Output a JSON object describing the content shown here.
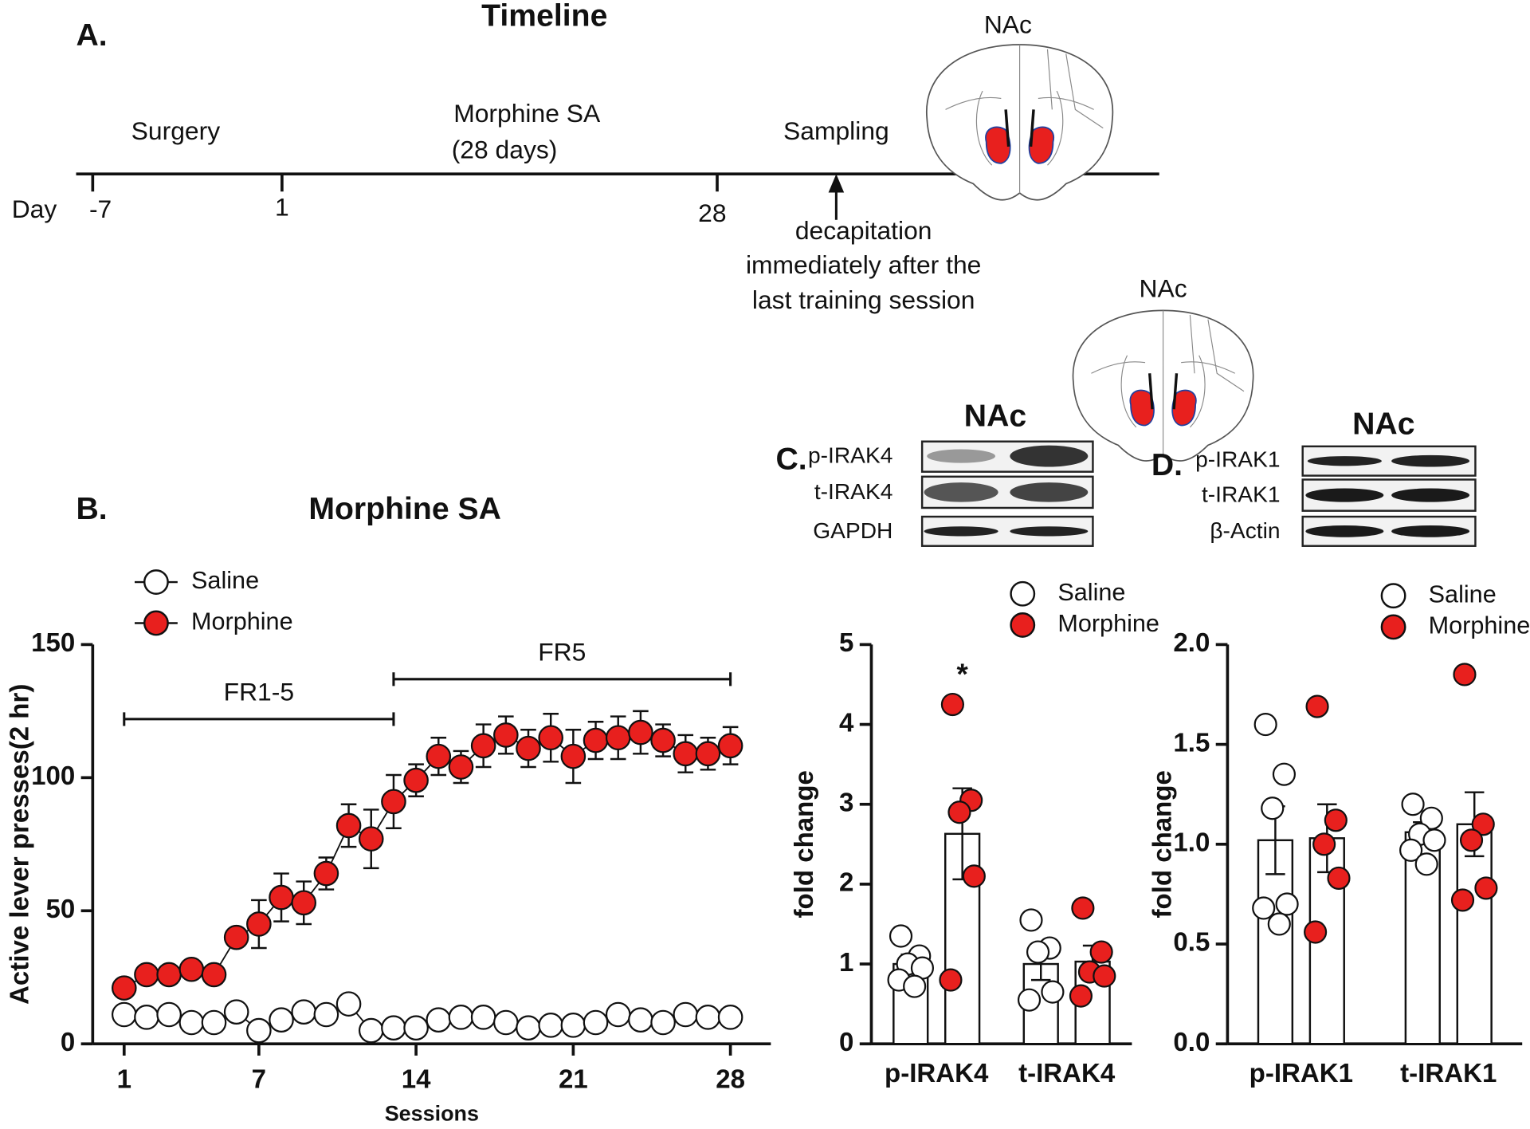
{
  "timeline": {
    "panel_label": "A.",
    "title": "Timeline",
    "day_label": "Day",
    "day_ticks": [
      "-7",
      "1",
      "28"
    ],
    "events": [
      "Surgery",
      "Morphine SA",
      "(28 days)",
      "Sampling"
    ],
    "note": [
      "decapitation",
      "immediately after the",
      "last training session"
    ],
    "region_labels": [
      "NAc",
      "NAc"
    ]
  },
  "blots": [
    {
      "panel_label": "C.",
      "title": "NAc",
      "rows": [
        "p-IRAK4",
        "t-IRAK4",
        "GAPDH"
      ]
    },
    {
      "panel_label": "D.",
      "title": "NAc",
      "rows": [
        "p-IRAK1",
        "t-IRAK1",
        "β-Actin"
      ]
    }
  ],
  "chart_data": [
    {
      "type": "line",
      "panel_label": "B.",
      "title": "Morphine SA",
      "x_label": "Sessions",
      "y_label": "Active lever presses(2 hr)",
      "x": [
        1,
        2,
        3,
        4,
        5,
        6,
        7,
        8,
        9,
        10,
        11,
        12,
        13,
        14,
        15,
        16,
        17,
        18,
        19,
        20,
        21,
        22,
        23,
        24,
        25,
        26,
        27,
        28
      ],
      "xlim": [
        -0.4,
        29.8
      ],
      "xticks": [
        1,
        7,
        14,
        21,
        28
      ],
      "ylim": [
        0,
        150
      ],
      "yticks": [
        0,
        50,
        100,
        150
      ],
      "legend": "top-left",
      "series": [
        {
          "name": "Saline",
          "color": "#ffffff",
          "values": [
            11,
            10,
            11,
            8,
            8,
            12,
            5,
            9,
            12,
            11,
            15,
            5,
            6,
            6,
            9,
            10,
            10,
            8,
            6,
            7,
            7,
            8,
            11,
            9,
            8,
            11,
            10,
            10
          ]
        },
        {
          "name": "Morphine",
          "color": "#e8201e",
          "values": [
            21,
            26,
            26,
            28,
            26,
            40,
            45,
            55,
            53,
            64,
            82,
            77,
            91,
            99,
            108,
            104,
            112,
            116,
            111,
            115,
            108,
            114,
            115,
            117,
            114,
            109,
            109,
            112
          ],
          "errors": [
            2,
            2,
            2,
            2,
            2,
            3,
            9,
            9,
            8,
            6,
            8,
            11,
            10,
            6,
            7,
            6,
            8,
            7,
            7,
            9,
            10,
            7,
            8,
            8,
            6,
            7,
            6,
            7
          ]
        }
      ],
      "annotations": [
        {
          "text": "FR1-5",
          "x": [
            1,
            13
          ],
          "y": 122
        },
        {
          "text": "FR5",
          "x": [
            13,
            28
          ],
          "y": 137
        }
      ]
    },
    {
      "type": "bar",
      "y_label": "fold change",
      "categories": [
        "p-IRAK4",
        "t-IRAK4"
      ],
      "ylim": [
        0,
        5
      ],
      "yticks": [
        0,
        1,
        2,
        3,
        4,
        5
      ],
      "legend": "top-right",
      "series": [
        {
          "name": "Saline",
          "color": "#ffffff",
          "values": [
            1.0,
            1.0
          ],
          "errors": [
            0.12,
            0.2
          ],
          "points": [
            [
              1.35,
              1.1,
              1.0,
              0.95,
              0.8,
              0.72
            ],
            [
              1.55,
              1.2,
              1.15,
              0.65,
              0.55
            ]
          ]
        },
        {
          "name": "Morphine",
          "color": "#e8201e",
          "values": [
            2.63,
            1.03
          ],
          "errors": [
            0.57,
            0.2
          ],
          "points": [
            [
              4.25,
              3.05,
              2.9,
              2.1,
              0.8
            ],
            [
              1.7,
              1.15,
              0.9,
              0.85,
              0.6
            ]
          ]
        }
      ],
      "annotations": [
        {
          "text": "*",
          "y": 4.6
        }
      ]
    },
    {
      "type": "bar",
      "y_label": "fold change",
      "categories": [
        "p-IRAK1",
        "t-IRAK1"
      ],
      "ylim": [
        0,
        2
      ],
      "yticks": [
        {
          "value": 0,
          "label": "0.0"
        },
        0.5,
        {
          "value": 1,
          "label": "1.0"
        },
        1.5,
        {
          "value": 2,
          "label": "2.0"
        }
      ],
      "legend": "top-right",
      "series": [
        {
          "name": "Saline",
          "color": "#ffffff",
          "values": [
            1.02,
            1.06
          ],
          "errors": [
            0.17,
            0.05
          ],
          "points": [
            [
              1.6,
              1.35,
              1.18,
              0.7,
              0.68,
              0.6
            ],
            [
              1.2,
              1.13,
              1.05,
              1.02,
              0.97,
              0.9
            ]
          ]
        },
        {
          "name": "Morphine",
          "color": "#e8201e",
          "values": [
            1.03,
            1.1
          ],
          "errors": [
            0.17,
            0.16
          ],
          "points": [
            [
              1.69,
              1.12,
              1.0,
              0.83,
              0.56
            ],
            [
              1.85,
              1.1,
              1.02,
              0.78,
              0.72
            ]
          ]
        }
      ]
    }
  ]
}
